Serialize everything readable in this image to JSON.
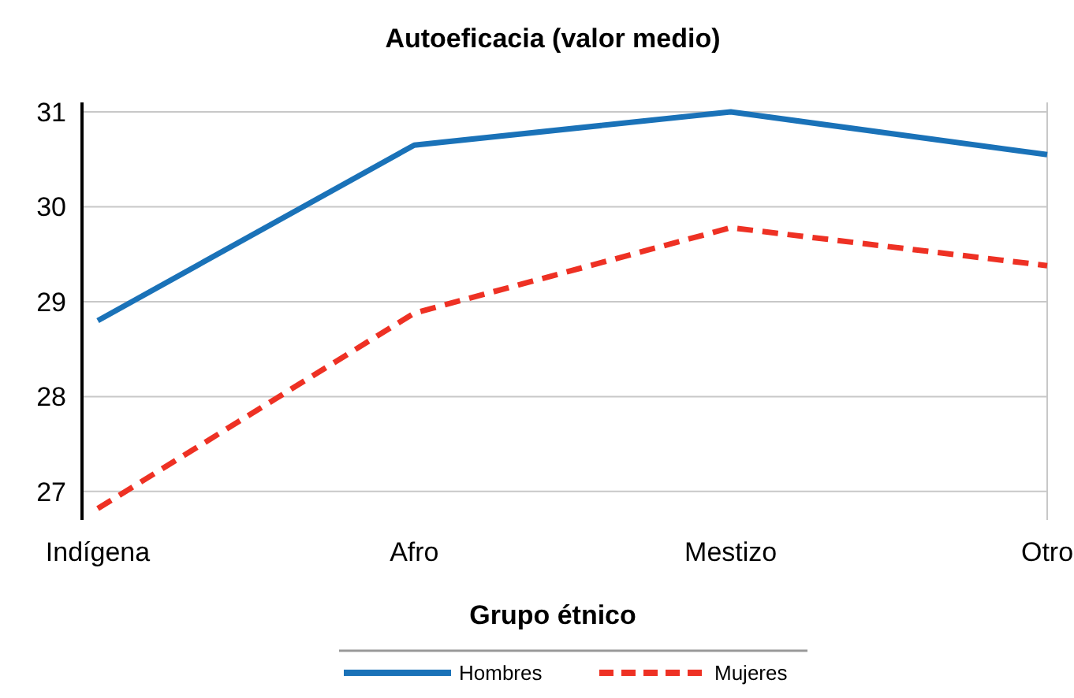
{
  "chart_data": {
    "type": "line",
    "title": "Autoeficacia (valor medio)",
    "xlabel": "Grupo étnico",
    "categories": [
      "Indígena",
      "Afro",
      "Mestizo",
      "Otro"
    ],
    "series": [
      {
        "name": "Hombres",
        "color": "#1a72b8",
        "values": [
          28.8,
          30.65,
          31.0,
          30.55
        ],
        "line_style": "solid"
      },
      {
        "name": "Mujeres",
        "color": "#ee3124",
        "values": [
          26.82,
          28.88,
          29.78,
          29.38
        ],
        "line_style": "dashed"
      }
    ],
    "ylim": [
      26.7,
      31.1
    ],
    "yticks": [
      27,
      28,
      29,
      30,
      31
    ],
    "grid": "y",
    "legend": "bottom",
    "marker": "none"
  }
}
